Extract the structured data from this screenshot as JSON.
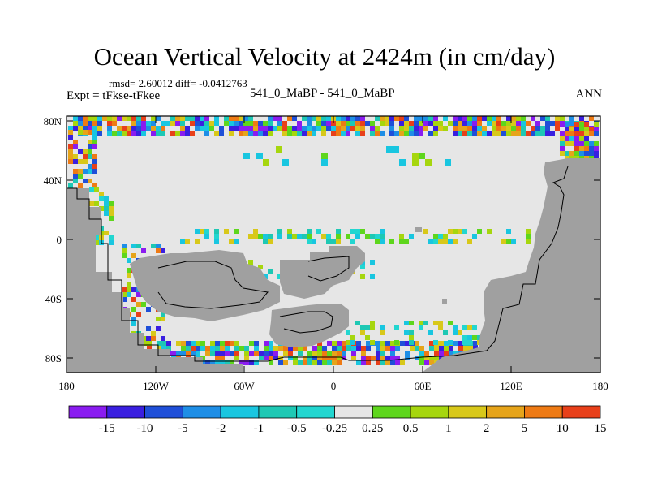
{
  "title": "Ocean Vertical Velocity at 2424m (in cm/day)",
  "stats_text": "rmsd= 2.60012 diff= -0.0412763",
  "left_subtitle": "Expt = tFkse-tFkee",
  "center_subtitle": "541_0_MaBP - 541_0_MaBP",
  "right_subtitle": "ANN",
  "latitude_labels": [
    "80N",
    "40N",
    "0",
    "40S",
    "80S"
  ],
  "longitude_labels": [
    "180",
    "120W",
    "60W",
    "0",
    "60E",
    "120E",
    "180"
  ],
  "colorbar": {
    "labels": [
      "-15",
      "-10",
      "-5",
      "-2",
      "-1",
      "-0.5",
      "-0.25",
      "0.25",
      "0.5",
      "1",
      "2",
      "5",
      "10",
      "15"
    ],
    "colors": [
      "#8a1cf0",
      "#3a1fe0",
      "#1f4fd8",
      "#1e8ee6",
      "#19c6e0",
      "#1ec8b4",
      "#22d6d0",
      "#e6e6e6",
      "#5ed61c",
      "#a6d60e",
      "#d8c81a",
      "#e6a41a",
      "#ee7a14",
      "#e8401a"
    ]
  },
  "colors": {
    "land": "#a0a0a0",
    "near_zero": "#e6e6e6",
    "outline": "#000000"
  }
}
